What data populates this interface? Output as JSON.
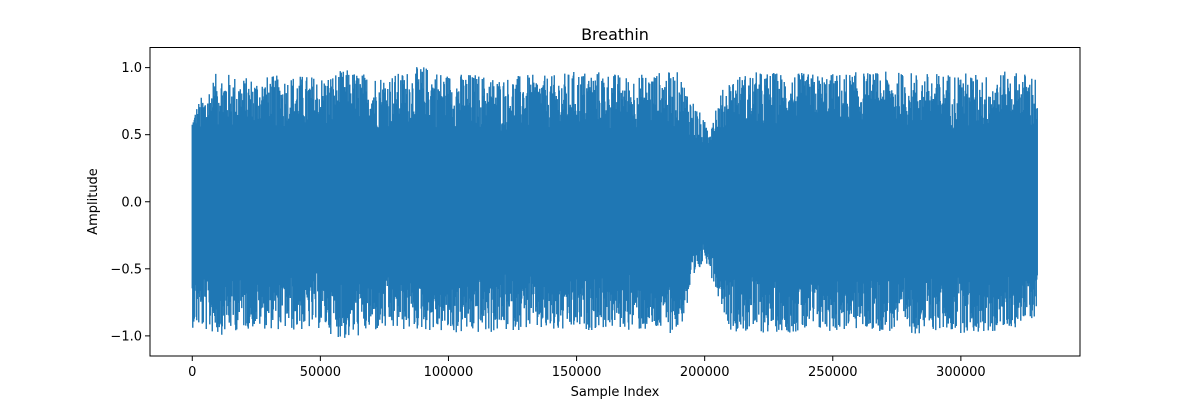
{
  "chart_data": {
    "type": "line",
    "title": "Breathin",
    "xlabel": "Sample Index",
    "ylabel": "Amplitude",
    "xlim": [
      -16500,
      346500
    ],
    "ylim": [
      -1.15,
      1.15
    ],
    "xticks": [
      0,
      50000,
      100000,
      150000,
      200000,
      250000,
      300000
    ],
    "xtick_labels": [
      "0",
      "50000",
      "100000",
      "150000",
      "200000",
      "250000",
      "300000"
    ],
    "yticks": [
      -1.0,
      -0.5,
      0.0,
      0.5,
      1.0
    ],
    "ytick_labels": [
      "−1.0",
      "−0.5",
      "0.0",
      "0.5",
      "1.0"
    ],
    "grid": false,
    "legend": "none",
    "series": [
      {
        "color": "#1f77b4",
        "x_start": 0,
        "x_end": 330000,
        "envelope": {
          "x": [
            0,
            10000,
            20000,
            30000,
            40000,
            50000,
            60000,
            70000,
            80000,
            90000,
            100000,
            110000,
            120000,
            130000,
            140000,
            150000,
            160000,
            170000,
            180000,
            190000,
            200000,
            210000,
            220000,
            230000,
            240000,
            250000,
            260000,
            270000,
            280000,
            290000,
            300000,
            310000,
            320000,
            330000
          ],
          "upper": [
            0.68,
            0.98,
            0.93,
            0.94,
            0.95,
            0.94,
            0.99,
            0.95,
            0.96,
            1.02,
            0.96,
            0.96,
            0.93,
            0.95,
            0.94,
            0.98,
            0.98,
            0.94,
            0.97,
            0.97,
            0.6,
            0.94,
            0.97,
            0.97,
            0.96,
            0.96,
            0.97,
            0.97,
            0.97,
            0.96,
            0.97,
            0.95,
            0.98,
            0.95
          ],
          "lower": [
            -0.94,
            -1.0,
            -0.95,
            -0.95,
            -0.97,
            -0.95,
            -1.04,
            -0.98,
            -0.97,
            -0.96,
            -0.99,
            -0.99,
            -0.98,
            -0.95,
            -0.99,
            -0.97,
            -0.95,
            -0.96,
            -0.98,
            -0.98,
            -0.42,
            -0.96,
            -0.99,
            -0.97,
            -0.99,
            -0.97,
            -0.96,
            -0.97,
            -0.99,
            -0.97,
            -0.98,
            -0.99,
            -0.95,
            -0.86
          ]
        }
      }
    ]
  }
}
